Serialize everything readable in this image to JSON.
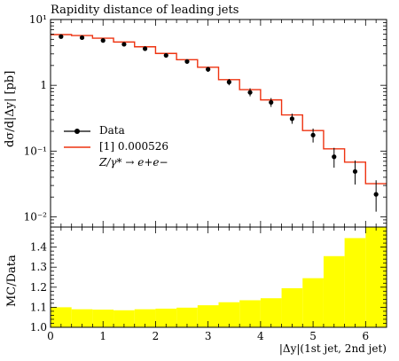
{
  "chart_data": [
    {
      "type": "line",
      "title": "Rapidity distance of leading jets",
      "ylabel": "dσ/d|Δy| [pb]",
      "yscale": "log",
      "ylim": [
        0.007,
        10
      ],
      "xlim": [
        0,
        6.4
      ],
      "y_tick_labels": [
        "10^1",
        "1",
        "10^-1",
        "10^-2"
      ],
      "legend": {
        "position": "left",
        "entries": [
          "Data",
          "[1] 0.000526",
          "Z/γ* → e+e−"
        ]
      },
      "series": [
        {
          "name": "Data",
          "style": "points-with-errorbars",
          "color": "#000000",
          "x": [
            0.2,
            0.6,
            1.0,
            1.4,
            1.8,
            2.2,
            2.6,
            3.0,
            3.4,
            3.8,
            4.2,
            4.6,
            5.0,
            5.4,
            5.8,
            6.2
          ],
          "y": [
            5.5,
            5.3,
            4.8,
            4.2,
            3.6,
            2.85,
            2.3,
            1.75,
            1.12,
            0.78,
            0.55,
            0.31,
            0.175,
            0.082,
            0.049,
            0.022
          ],
          "yerr_low": [
            5.2,
            5.0,
            4.55,
            3.95,
            3.4,
            2.65,
            2.12,
            1.6,
            1.0,
            0.68,
            0.47,
            0.26,
            0.135,
            0.056,
            0.031,
            0.012
          ],
          "yerr_high": [
            5.8,
            5.6,
            5.05,
            4.45,
            3.8,
            3.05,
            2.48,
            1.9,
            1.25,
            0.9,
            0.64,
            0.37,
            0.22,
            0.112,
            0.072,
            0.036
          ]
        },
        {
          "name": "[1] 0.000526",
          "style": "step",
          "color": "#ee3311",
          "bin_edges": [
            0,
            0.4,
            0.8,
            1.2,
            1.6,
            2.0,
            2.4,
            2.8,
            3.2,
            3.6,
            4.0,
            4.4,
            4.8,
            5.2,
            5.6,
            6.0,
            6.4
          ],
          "values": [
            5.9,
            5.7,
            5.2,
            4.55,
            3.85,
            3.05,
            2.45,
            1.88,
            1.22,
            0.86,
            0.6,
            0.355,
            0.205,
            0.108,
            0.068,
            0.032
          ]
        }
      ]
    },
    {
      "type": "area",
      "ylabel": "MC/Data",
      "xlabel": "|Δy|(1st jet, 2nd jet)",
      "ylim": [
        1.0,
        1.5
      ],
      "xlim": [
        0,
        6.4
      ],
      "x_ticks": [
        0,
        1,
        2,
        3,
        4,
        5,
        6
      ],
      "y_ticks": [
        1.0,
        1.1,
        1.2,
        1.3,
        1.4
      ],
      "fill_color": "#ffff00",
      "bin_edges": [
        0,
        0.4,
        0.8,
        1.2,
        1.6,
        2.0,
        2.4,
        2.8,
        3.2,
        3.6,
        4.0,
        4.4,
        4.8,
        5.2,
        5.6,
        6.0,
        6.4
      ],
      "values": [
        1.1,
        1.09,
        1.088,
        1.085,
        1.09,
        1.093,
        1.098,
        1.11,
        1.125,
        1.135,
        1.145,
        1.195,
        1.245,
        1.355,
        1.445,
        1.5
      ]
    }
  ]
}
